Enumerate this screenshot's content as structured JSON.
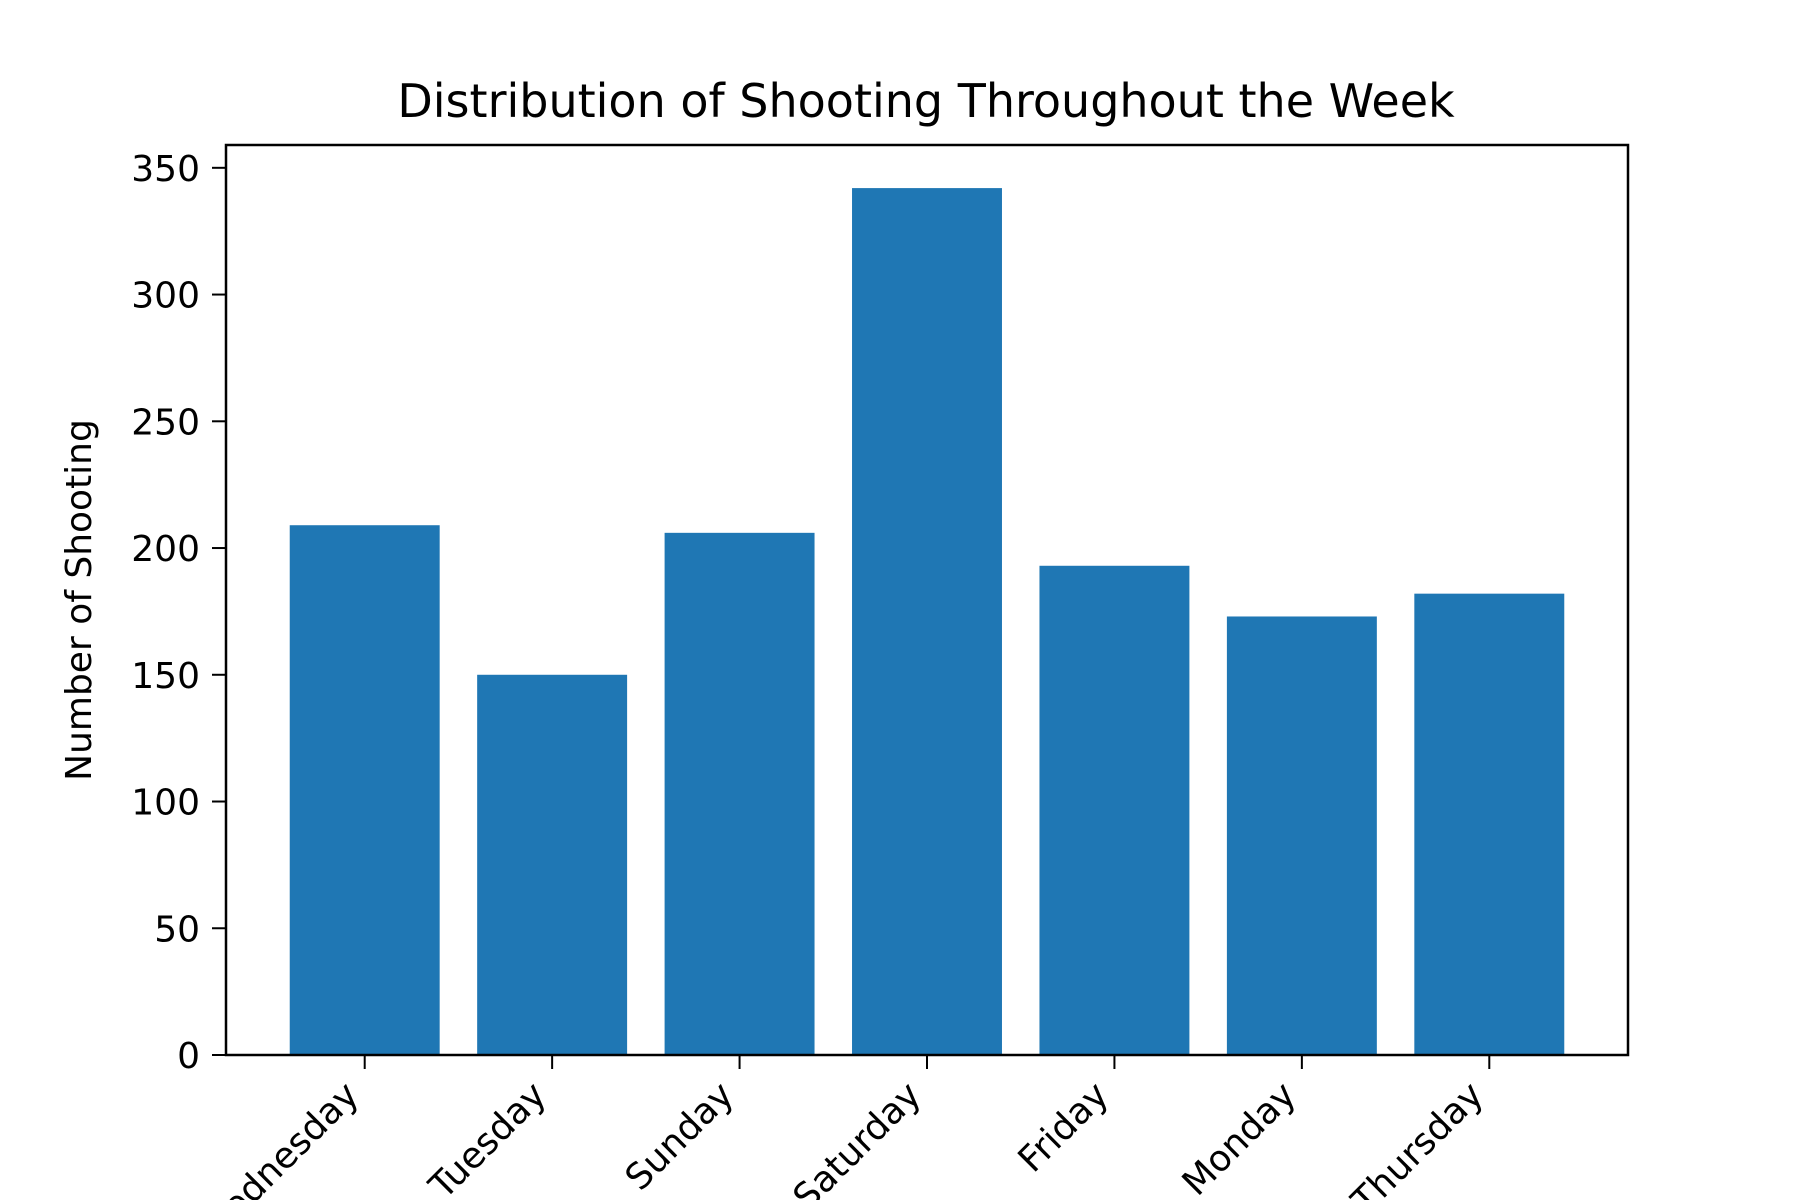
{
  "chart_data": {
    "type": "bar",
    "title": "Distribution of Shooting Throughout the Week",
    "xlabel": "",
    "ylabel": "Number of Shooting",
    "categories": [
      "Wednesday",
      "Tuesday",
      "Sunday",
      "Saturday",
      "Friday",
      "Monday",
      "Thursday"
    ],
    "values": [
      209,
      150,
      206,
      342,
      193,
      173,
      182
    ],
    "ylim": [
      0,
      359
    ],
    "yticks": [
      0,
      50,
      100,
      150,
      200,
      250,
      300,
      350
    ],
    "bar_color": "#1f77b4",
    "grid": false,
    "legend": "none",
    "x_tick_rotation": "45 degrees"
  }
}
